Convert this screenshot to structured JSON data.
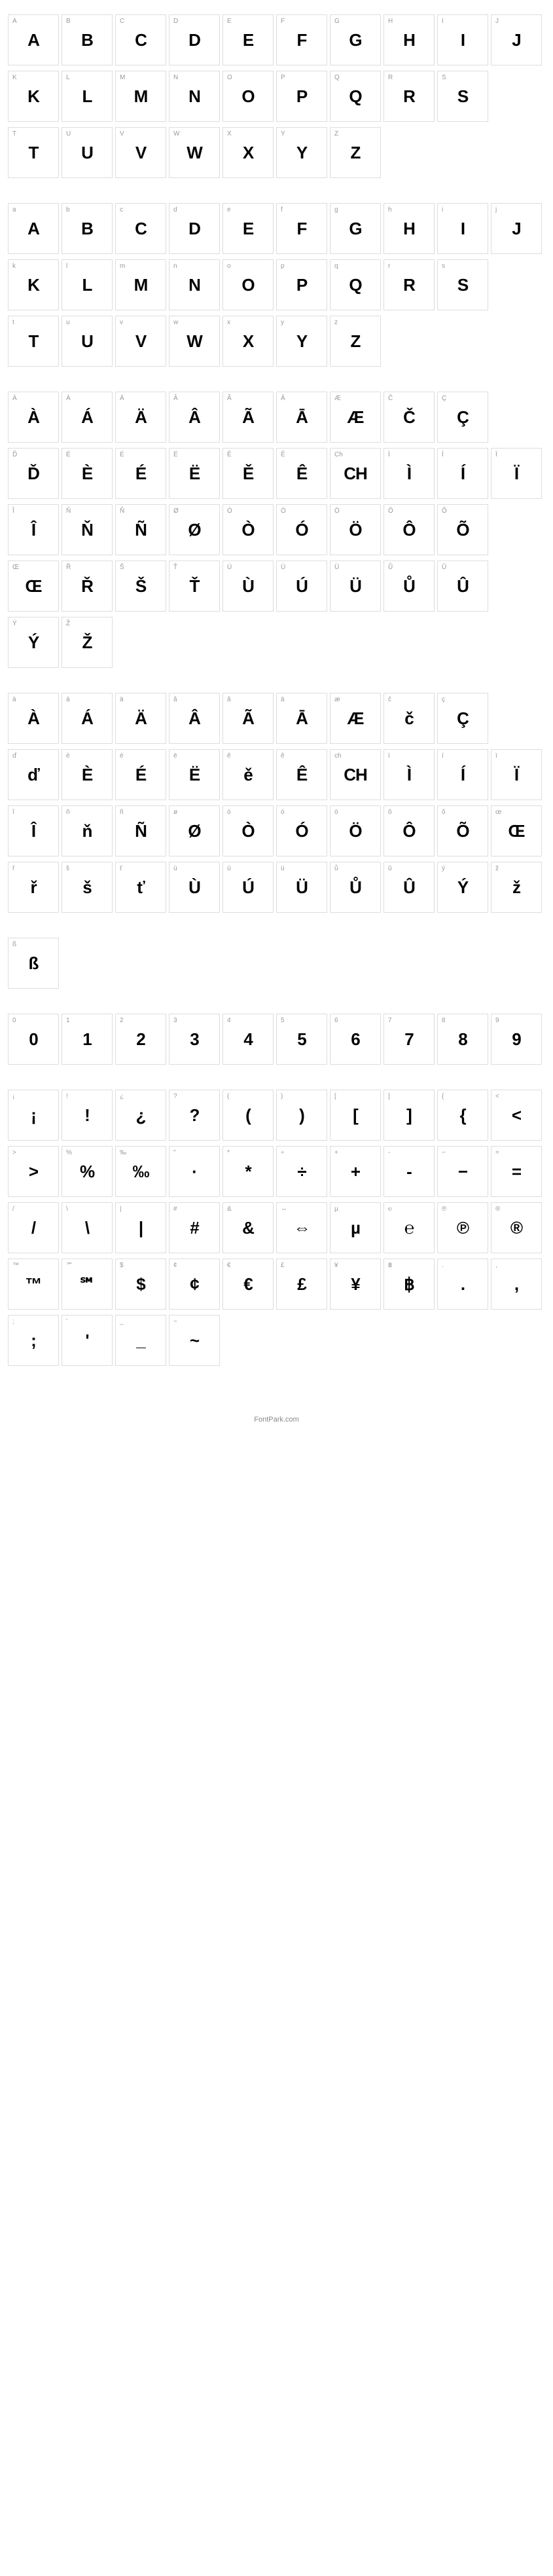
{
  "footer": "FontPark.com",
  "sections": [
    {
      "rows": [
        [
          {
            "l": "A",
            "g": "A"
          },
          {
            "l": "B",
            "g": "B"
          },
          {
            "l": "C",
            "g": "C"
          },
          {
            "l": "D",
            "g": "D"
          },
          {
            "l": "E",
            "g": "E"
          },
          {
            "l": "F",
            "g": "F"
          },
          {
            "l": "G",
            "g": "G"
          },
          {
            "l": "H",
            "g": "H"
          },
          {
            "l": "I",
            "g": "I"
          },
          {
            "l": "J",
            "g": "J"
          }
        ],
        [
          {
            "l": "K",
            "g": "K"
          },
          {
            "l": "L",
            "g": "L"
          },
          {
            "l": "M",
            "g": "M"
          },
          {
            "l": "N",
            "g": "N"
          },
          {
            "l": "O",
            "g": "O"
          },
          {
            "l": "P",
            "g": "P"
          },
          {
            "l": "Q",
            "g": "Q"
          },
          {
            "l": "R",
            "g": "R"
          },
          {
            "l": "S",
            "g": "S"
          },
          {
            "empty": true
          }
        ],
        [
          {
            "l": "T",
            "g": "T"
          },
          {
            "l": "U",
            "g": "U"
          },
          {
            "l": "V",
            "g": "V"
          },
          {
            "l": "W",
            "g": "W"
          },
          {
            "l": "X",
            "g": "X"
          },
          {
            "l": "Y",
            "g": "Y"
          },
          {
            "l": "Z",
            "g": "Z"
          },
          {
            "empty": true
          },
          {
            "empty": true
          },
          {
            "empty": true
          }
        ]
      ]
    },
    {
      "rows": [
        [
          {
            "l": "a",
            "g": "A"
          },
          {
            "l": "b",
            "g": "B"
          },
          {
            "l": "c",
            "g": "C"
          },
          {
            "l": "d",
            "g": "D"
          },
          {
            "l": "e",
            "g": "E"
          },
          {
            "l": "f",
            "g": "F"
          },
          {
            "l": "g",
            "g": "G"
          },
          {
            "l": "h",
            "g": "H"
          },
          {
            "l": "i",
            "g": "I"
          },
          {
            "l": "j",
            "g": "J"
          }
        ],
        [
          {
            "l": "k",
            "g": "K"
          },
          {
            "l": "l",
            "g": "L"
          },
          {
            "l": "m",
            "g": "M"
          },
          {
            "l": "n",
            "g": "N"
          },
          {
            "l": "o",
            "g": "O"
          },
          {
            "l": "p",
            "g": "P"
          },
          {
            "l": "q",
            "g": "Q"
          },
          {
            "l": "r",
            "g": "R"
          },
          {
            "l": "s",
            "g": "S"
          },
          {
            "empty": true
          }
        ],
        [
          {
            "l": "t",
            "g": "T"
          },
          {
            "l": "u",
            "g": "U"
          },
          {
            "l": "v",
            "g": "V"
          },
          {
            "l": "w",
            "g": "W"
          },
          {
            "l": "x",
            "g": "X"
          },
          {
            "l": "y",
            "g": "Y"
          },
          {
            "l": "z",
            "g": "Z"
          },
          {
            "empty": true
          },
          {
            "empty": true
          },
          {
            "empty": true
          }
        ]
      ]
    },
    {
      "rows": [
        [
          {
            "l": "À",
            "g": "À"
          },
          {
            "l": "Á",
            "g": "Á"
          },
          {
            "l": "Ä",
            "g": "Ä"
          },
          {
            "l": "Â",
            "g": "Â"
          },
          {
            "l": "Ã",
            "g": "Ã"
          },
          {
            "l": "Ā",
            "g": "Ā"
          },
          {
            "l": "Æ",
            "g": "Æ"
          },
          {
            "l": "Č",
            "g": "Č"
          },
          {
            "l": "Ç",
            "g": "Ç"
          },
          {
            "empty": true
          }
        ],
        [
          {
            "l": "Ď",
            "g": "Ď"
          },
          {
            "l": "È",
            "g": "È"
          },
          {
            "l": "É",
            "g": "É"
          },
          {
            "l": "Ë",
            "g": "Ë"
          },
          {
            "l": "Ě",
            "g": "Ě"
          },
          {
            "l": "Ê",
            "g": "Ê"
          },
          {
            "l": "Ch",
            "g": "CH"
          },
          {
            "l": "Ì",
            "g": "Ì"
          },
          {
            "l": "Í",
            "g": "Í"
          },
          {
            "l": "Ï",
            "g": "Ï"
          }
        ],
        [
          {
            "l": "Î",
            "g": "Î"
          },
          {
            "l": "Ň",
            "g": "Ň"
          },
          {
            "l": "Ñ",
            "g": "Ñ"
          },
          {
            "l": "Ø",
            "g": "Ø"
          },
          {
            "l": "Ò",
            "g": "Ò"
          },
          {
            "l": "Ó",
            "g": "Ó"
          },
          {
            "l": "Ö",
            "g": "Ö"
          },
          {
            "l": "Ô",
            "g": "Ô"
          },
          {
            "l": "Õ",
            "g": "Õ"
          },
          {
            "empty": true
          }
        ],
        [
          {
            "l": "Œ",
            "g": "Œ"
          },
          {
            "l": "Ř",
            "g": "Ř"
          },
          {
            "l": "Š",
            "g": "Š"
          },
          {
            "l": "Ť",
            "g": "Ť"
          },
          {
            "l": "Ù",
            "g": "Ù"
          },
          {
            "l": "Ú",
            "g": "Ú"
          },
          {
            "l": "Ü",
            "g": "Ü"
          },
          {
            "l": "Ů",
            "g": "Ů"
          },
          {
            "l": "Û",
            "g": "Û"
          },
          {
            "empty": true
          }
        ],
        [
          {
            "l": "Ý",
            "g": "Ý"
          },
          {
            "l": "Ž",
            "g": "Ž"
          },
          {
            "empty": true
          },
          {
            "empty": true
          },
          {
            "empty": true
          },
          {
            "empty": true
          },
          {
            "empty": true
          },
          {
            "empty": true
          },
          {
            "empty": true
          },
          {
            "empty": true
          }
        ]
      ]
    },
    {
      "rows": [
        [
          {
            "l": "à",
            "g": "À"
          },
          {
            "l": "á",
            "g": "Á"
          },
          {
            "l": "ä",
            "g": "Ä"
          },
          {
            "l": "â",
            "g": "Â"
          },
          {
            "l": "ã",
            "g": "Ã"
          },
          {
            "l": "ā",
            "g": "Ā"
          },
          {
            "l": "æ",
            "g": "Æ"
          },
          {
            "l": "č",
            "g": "č"
          },
          {
            "l": "ç",
            "g": "Ç"
          },
          {
            "empty": true
          }
        ],
        [
          {
            "l": "ď",
            "g": "ď"
          },
          {
            "l": "è",
            "g": "È"
          },
          {
            "l": "é",
            "g": "É"
          },
          {
            "l": "ë",
            "g": "Ë"
          },
          {
            "l": "ě",
            "g": "ě"
          },
          {
            "l": "ê",
            "g": "Ê"
          },
          {
            "l": "ch",
            "g": "CH"
          },
          {
            "l": "ì",
            "g": "Ì"
          },
          {
            "l": "í",
            "g": "Í"
          },
          {
            "l": "ï",
            "g": "Ï"
          }
        ],
        [
          {
            "l": "î",
            "g": "Î"
          },
          {
            "l": "ň",
            "g": "ň"
          },
          {
            "l": "ñ",
            "g": "Ñ"
          },
          {
            "l": "ø",
            "g": "Ø"
          },
          {
            "l": "ò",
            "g": "Ò"
          },
          {
            "l": "ó",
            "g": "Ó"
          },
          {
            "l": "ö",
            "g": "Ö"
          },
          {
            "l": "ô",
            "g": "Ô"
          },
          {
            "l": "õ",
            "g": "Õ"
          },
          {
            "l": "œ",
            "g": "Œ"
          }
        ],
        [
          {
            "l": "ř",
            "g": "ř"
          },
          {
            "l": "š",
            "g": "š"
          },
          {
            "l": "ť",
            "g": "ť"
          },
          {
            "l": "ù",
            "g": "Ù"
          },
          {
            "l": "ú",
            "g": "Ú"
          },
          {
            "l": "ü",
            "g": "Ü"
          },
          {
            "l": "ů",
            "g": "Ů"
          },
          {
            "l": "û",
            "g": "Û"
          },
          {
            "l": "ý",
            "g": "Ý"
          },
          {
            "l": "ž",
            "g": "ž"
          }
        ]
      ]
    },
    {
      "rows": [
        [
          {
            "l": "ß",
            "g": "ß"
          },
          {
            "empty": true
          },
          {
            "empty": true
          },
          {
            "empty": true
          },
          {
            "empty": true
          },
          {
            "empty": true
          },
          {
            "empty": true
          },
          {
            "empty": true
          },
          {
            "empty": true
          },
          {
            "empty": true
          }
        ]
      ]
    },
    {
      "rows": [
        [
          {
            "l": "0",
            "g": "0"
          },
          {
            "l": "1",
            "g": "1"
          },
          {
            "l": "2",
            "g": "2"
          },
          {
            "l": "3",
            "g": "3"
          },
          {
            "l": "4",
            "g": "4"
          },
          {
            "l": "5",
            "g": "5"
          },
          {
            "l": "6",
            "g": "6"
          },
          {
            "l": "7",
            "g": "7"
          },
          {
            "l": "8",
            "g": "8"
          },
          {
            "l": "9",
            "g": "9"
          }
        ]
      ]
    },
    {
      "rows": [
        [
          {
            "l": "¡",
            "g": "¡"
          },
          {
            "l": "!",
            "g": "!"
          },
          {
            "l": "¿",
            "g": "¿"
          },
          {
            "l": "?",
            "g": "?"
          },
          {
            "l": "(",
            "g": "("
          },
          {
            "l": ")",
            "g": ")"
          },
          {
            "l": "[",
            "g": "["
          },
          {
            "l": "]",
            "g": "]"
          },
          {
            "l": "{",
            "g": "{"
          },
          {
            "l": "<",
            "g": "<"
          }
        ],
        [
          {
            "l": ">",
            "g": ">"
          },
          {
            "l": "%",
            "g": "%"
          },
          {
            "l": "‰",
            "g": "‰"
          },
          {
            "l": "\"",
            "g": "·"
          },
          {
            "l": "*",
            "g": "*"
          },
          {
            "l": "÷",
            "g": "÷"
          },
          {
            "l": "+",
            "g": "+"
          },
          {
            "l": "-",
            "g": "-"
          },
          {
            "l": "−",
            "g": "−"
          },
          {
            "l": "=",
            "g": "="
          }
        ],
        [
          {
            "l": "/",
            "g": "/"
          },
          {
            "l": "\\",
            "g": "\\"
          },
          {
            "l": "|",
            "g": "|"
          },
          {
            "l": "#",
            "g": "#"
          },
          {
            "l": "&",
            "g": "&"
          },
          {
            "l": "⇔",
            "g": "⇔"
          },
          {
            "l": "µ",
            "g": "µ"
          },
          {
            "l": "℮",
            "g": "℮"
          },
          {
            "l": "℗",
            "g": "℗"
          },
          {
            "l": "®",
            "g": "®"
          }
        ],
        [
          {
            "l": "™",
            "g": "™"
          },
          {
            "l": "℠",
            "g": "℠"
          },
          {
            "l": "$",
            "g": "$"
          },
          {
            "l": "¢",
            "g": "¢"
          },
          {
            "l": "€",
            "g": "€"
          },
          {
            "l": "£",
            "g": "£"
          },
          {
            "l": "¥",
            "g": "¥"
          },
          {
            "l": "฿",
            "g": "฿"
          },
          {
            "l": ".",
            "g": "."
          },
          {
            "l": ",",
            "g": ","
          }
        ],
        [
          {
            "l": ";",
            "g": ";"
          },
          {
            "l": "'",
            "g": "'"
          },
          {
            "l": "_",
            "g": "_"
          },
          {
            "l": "~",
            "g": "~"
          },
          {
            "empty": true
          },
          {
            "empty": true
          },
          {
            "empty": true
          },
          {
            "empty": true
          },
          {
            "empty": true
          },
          {
            "empty": true
          }
        ]
      ]
    }
  ]
}
